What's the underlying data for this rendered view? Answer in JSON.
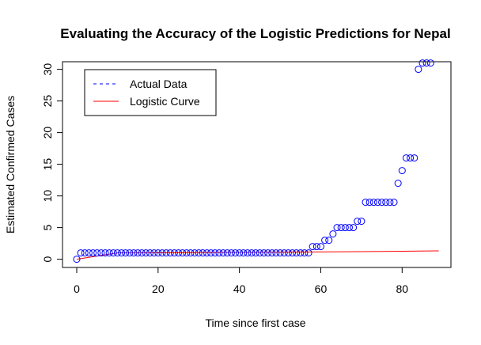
{
  "chart_data": {
    "type": "scatter",
    "title": "Evaluating the Accuracy of the Logistic Predictions for Nepal",
    "xlabel": "Time since first case",
    "ylabel": "Estimated Confirmed Cases",
    "xlim": [
      -3.5,
      92
    ],
    "ylim": [
      -1.3,
      31.2
    ],
    "x_ticks": [
      0,
      20,
      40,
      60,
      80
    ],
    "y_ticks": [
      0,
      5,
      10,
      15,
      20,
      25,
      30
    ],
    "grid": false,
    "legend": {
      "placement": "top-left",
      "entries": [
        "Actual Data",
        "Logistic Curve"
      ]
    },
    "series": [
      {
        "name": "Actual Data",
        "kind": "points",
        "color": "#0000ff",
        "x": [
          0,
          1,
          2,
          3,
          4,
          5,
          6,
          7,
          8,
          9,
          10,
          11,
          12,
          13,
          14,
          15,
          16,
          17,
          18,
          19,
          20,
          21,
          22,
          23,
          24,
          25,
          26,
          27,
          28,
          29,
          30,
          31,
          32,
          33,
          34,
          35,
          36,
          37,
          38,
          39,
          40,
          41,
          42,
          43,
          44,
          45,
          46,
          47,
          48,
          49,
          50,
          51,
          52,
          53,
          54,
          55,
          56,
          57,
          58,
          59,
          60,
          61,
          62,
          63,
          64,
          65,
          66,
          67,
          68,
          69,
          70,
          71,
          72,
          73,
          74,
          75,
          76,
          77,
          78,
          79,
          80,
          81,
          82,
          83,
          84,
          85,
          86,
          87
        ],
        "y": [
          0,
          1,
          1,
          1,
          1,
          1,
          1,
          1,
          1,
          1,
          1,
          1,
          1,
          1,
          1,
          1,
          1,
          1,
          1,
          1,
          1,
          1,
          1,
          1,
          1,
          1,
          1,
          1,
          1,
          1,
          1,
          1,
          1,
          1,
          1,
          1,
          1,
          1,
          1,
          1,
          1,
          1,
          1,
          1,
          1,
          1,
          1,
          1,
          1,
          1,
          1,
          1,
          1,
          1,
          1,
          1,
          1,
          1,
          2,
          2,
          2,
          3,
          3,
          4,
          5,
          5,
          5,
          5,
          5,
          6,
          6,
          9,
          9,
          9,
          9,
          9,
          9,
          9,
          9,
          12,
          14,
          16,
          16,
          16,
          30,
          31,
          31,
          31
        ]
      },
      {
        "name": "Logistic Curve",
        "kind": "line",
        "color": "#ff0000",
        "x": [
          0,
          10,
          20,
          30,
          40,
          50,
          60,
          70,
          80,
          89
        ],
        "y": [
          0,
          1,
          1.02,
          1.05,
          1.08,
          1.11,
          1.15,
          1.2,
          1.27,
          1.33
        ]
      }
    ]
  }
}
